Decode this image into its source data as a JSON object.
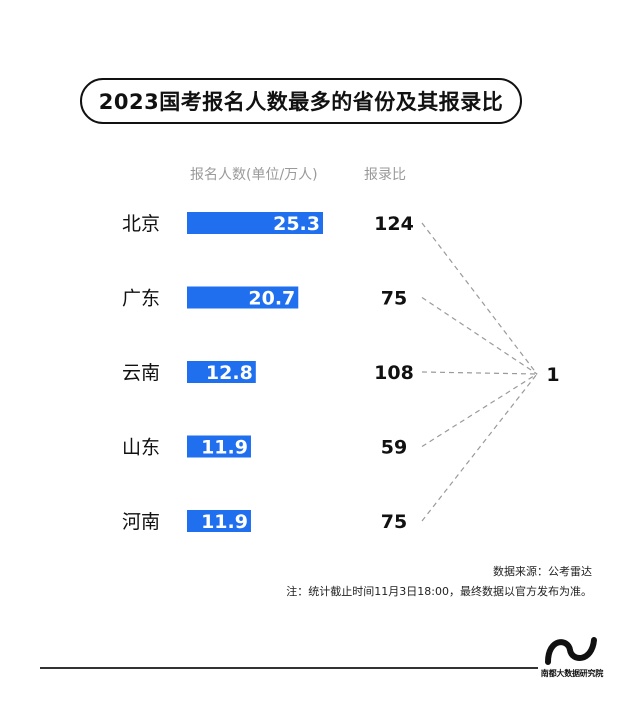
{
  "chart_data": {
    "type": "bar",
    "title": "2023国考报名人数最多的省份及其报录比",
    "column_headers": {
      "applicants": "报名人数(单位/万人)",
      "ratio": "报录比"
    },
    "categories": [
      "北京",
      "广东",
      "云南",
      "山东",
      "河南"
    ],
    "series": [
      {
        "name": "报名人数(单位/万人)",
        "values": [
          25.3,
          20.7,
          12.8,
          11.9,
          11.9
        ]
      },
      {
        "name": "报录比",
        "values": [
          124,
          75,
          108,
          59,
          75
        ]
      }
    ],
    "ratio_base": "1",
    "bar_color": "#1f6fef",
    "xlim": [
      0,
      25.3
    ]
  },
  "source": "数据来源：公考雷达",
  "note": "注：统计截止时间11月3日18:00，最终数据以官方发布为准。",
  "logo_text": "南都大数据研究院"
}
